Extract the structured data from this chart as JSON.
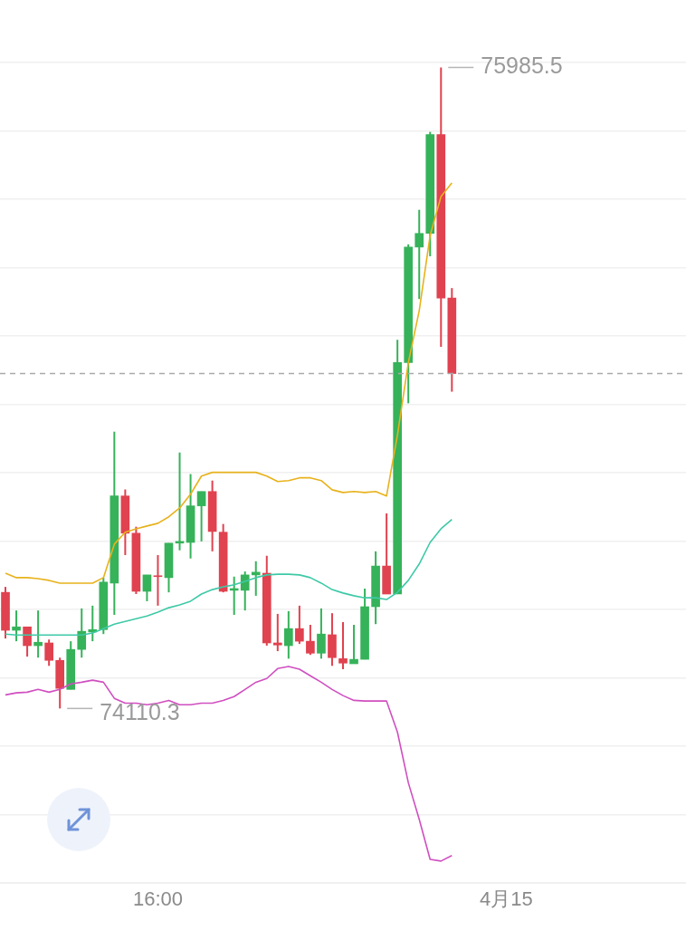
{
  "chart_data": {
    "type": "candlestick",
    "categories": [
      null,
      null,
      null,
      null,
      null,
      null,
      null,
      null,
      null,
      null,
      null,
      null,
      null,
      null,
      "16:00",
      null,
      null,
      null,
      null,
      null,
      null,
      null,
      null,
      null,
      null,
      null,
      null,
      null,
      null,
      null,
      null,
      null,
      null,
      null,
      null,
      null,
      null,
      null,
      null,
      null,
      null,
      null,
      null,
      null,
      null,
      null,
      "4月15",
      null,
      null,
      null,
      null,
      null,
      null,
      null,
      null,
      null,
      null,
      null,
      null,
      null,
      null,
      null,
      null
    ],
    "ohlc": [
      [
        74450,
        74466,
        74315,
        74339
      ],
      [
        74339,
        74397,
        74307,
        74349
      ],
      [
        74349,
        74349,
        74262,
        74294
      ],
      [
        74294,
        74397,
        74259,
        74304
      ],
      [
        74302,
        74312,
        74235,
        74251
      ],
      [
        74251,
        74259,
        74110.3,
        74169
      ],
      [
        74166,
        74307,
        74166,
        74283
      ],
      [
        74283,
        74403,
        74259,
        74336
      ],
      [
        74334,
        74411,
        74307,
        74341
      ],
      [
        74341,
        74493,
        74328,
        74480
      ],
      [
        74477,
        74920,
        74384,
        74732
      ],
      [
        74732,
        74751,
        74559,
        74623
      ],
      [
        74623,
        74642,
        74445,
        74453
      ],
      [
        74453,
        74501,
        74424,
        74501
      ],
      [
        74498,
        74559,
        74411,
        74496
      ],
      [
        74493,
        74594,
        74450,
        74594
      ],
      [
        74594,
        74859,
        74573,
        74599
      ],
      [
        74596,
        74796,
        74549,
        74703
      ],
      [
        74703,
        74745,
        74599,
        74745
      ],
      [
        74745,
        74777,
        74570,
        74628
      ],
      [
        74626,
        74650,
        74450,
        74453
      ],
      [
        74456,
        74496,
        74384,
        74461
      ],
      [
        74456,
        74511,
        74397,
        74501
      ],
      [
        74501,
        74541,
        74440,
        74509
      ],
      [
        74506,
        74557,
        74294,
        74302
      ],
      [
        74302,
        74387,
        74278,
        74296
      ],
      [
        74294,
        74395,
        74256,
        74344
      ],
      [
        74344,
        74411,
        74299,
        74307
      ],
      [
        74307,
        74355,
        74267,
        74272
      ],
      [
        74272,
        74403,
        74256,
        74328
      ],
      [
        74326,
        74389,
        74235,
        74259
      ],
      [
        74256,
        74363,
        74225,
        74243
      ],
      [
        74241,
        74355,
        74241,
        74254
      ],
      [
        74254,
        74461,
        74254,
        74408
      ],
      [
        74408,
        74570,
        74357,
        74527
      ],
      [
        74527,
        74681,
        74445,
        74445
      ],
      [
        74445,
        75189,
        74445,
        75122
      ],
      [
        75122,
        75468,
        75003,
        75460
      ],
      [
        75460,
        75569,
        75308,
        75500
      ],
      [
        75500,
        75797,
        75433,
        75789
      ],
      [
        75789,
        75985.5,
        75168,
        75311
      ],
      [
        75311,
        75340,
        75037,
        75090
      ],
      null,
      null,
      null,
      null,
      null,
      null,
      null,
      null,
      null,
      null,
      null,
      null,
      null,
      null,
      null,
      null,
      null,
      null,
      null,
      null,
      null
    ],
    "colors": [
      "#e0424f",
      "#36b25a",
      "#e0424f",
      "#36b25a",
      "#e0424f",
      "#e0424f",
      "#36b25a",
      "#36b25a",
      "#36b25a",
      "#36b25a",
      "#36b25a",
      "#e0424f",
      "#e0424f",
      "#36b25a",
      "#e0424f",
      "#36b25a",
      "#36b25a",
      "#36b25a",
      "#36b25a",
      "#e0424f",
      "#e0424f",
      "#36b25a",
      "#36b25a",
      "#36b25a",
      "#e0424f",
      "#e0424f",
      "#36b25a",
      "#e0424f",
      "#e0424f",
      "#36b25a",
      "#e0424f",
      "#e0424f",
      "#36b25a",
      "#36b25a",
      "#36b25a",
      "#e0424f",
      "#36b25a",
      "#36b25a",
      "#36b25a",
      "#36b25a",
      "#e0424f",
      "#e0424f",
      null,
      null,
      null,
      null,
      null,
      null,
      null,
      null,
      null,
      null,
      null,
      null,
      null,
      null,
      null,
      null,
      null,
      null,
      null,
      null,
      null
    ],
    "series": [
      {
        "type": "line",
        "color": "#e8b21c",
        "values": [
          74506,
          74493,
          74493,
          74490,
          74485,
          74477,
          74477,
          74477,
          74477,
          74493,
          74591,
          74626,
          74636,
          74644,
          74652,
          74671,
          74697,
          74737,
          74790,
          74801,
          74801,
          74801,
          74801,
          74801,
          74790,
          74774,
          74777,
          74785,
          74785,
          74777,
          74750,
          74742,
          74745,
          74742,
          74745,
          74732,
          74910,
          75122,
          75274,
          75494,
          75608,
          75648,
          null,
          null,
          null,
          null,
          null,
          null,
          null,
          null,
          null,
          null,
          null,
          null,
          null,
          null,
          null,
          null,
          null,
          null,
          null,
          null,
          null
        ]
      },
      {
        "type": "line",
        "color": "#3ec9a7",
        "values": [
          74328,
          74325,
          74325,
          74325,
          74325,
          74325,
          74325,
          74325,
          74331,
          74344,
          74357,
          74365,
          74373,
          74381,
          74392,
          74405,
          74413,
          74424,
          74445,
          74458,
          74466,
          74472,
          74482,
          74493,
          74501,
          74503,
          74503,
          74501,
          74493,
          74477,
          74458,
          74448,
          74440,
          74434,
          74434,
          74429,
          74450,
          74485,
          74533,
          74596,
          74636,
          74663,
          null,
          null,
          null,
          null,
          null,
          null,
          null,
          null,
          null,
          null,
          null,
          null,
          null,
          null,
          null,
          null,
          null,
          null,
          null,
          null,
          null
        ]
      },
      {
        "type": "line",
        "color": "#d04fc0",
        "values": [
          74150,
          74156,
          74158,
          74166,
          74158,
          74166,
          74182,
          74187,
          74193,
          74187,
          74140,
          74126,
          74126,
          74121,
          74126,
          74134,
          74121,
          74121,
          74126,
          74126,
          74134,
          74145,
          74166,
          74187,
          74198,
          74227,
          74233,
          74225,
          74206,
          74187,
          74166,
          74148,
          74134,
          74132,
          74132,
          74132,
          74041,
          73893,
          73786,
          73669,
          73664,
          73680,
          null,
          null,
          null,
          null,
          null,
          null,
          null,
          null,
          null,
          null,
          null,
          null,
          null,
          null,
          null,
          null,
          null,
          null,
          null,
          null,
          null
        ]
      }
    ],
    "ylim": [
      73600,
      76000
    ],
    "yticks": [
      {
        "value": 73600,
        "label": null
      },
      {
        "value": 73800,
        "label": null
      },
      {
        "value": 74000,
        "label": null
      },
      {
        "value": 74200,
        "label": null
      },
      {
        "value": 74400,
        "label": null
      },
      {
        "value": 74600,
        "label": null
      },
      {
        "value": 74800,
        "label": null
      },
      {
        "value": 75000,
        "label": null
      },
      {
        "value": 75200,
        "label": null
      },
      {
        "value": 75400,
        "label": null
      },
      {
        "value": 75600,
        "label": null
      },
      {
        "value": 75800,
        "label": null
      },
      {
        "value": 76000,
        "label": null
      }
    ],
    "grid": "y",
    "tick_labels": "x",
    "ref_lines": [
      {
        "axis": "y",
        "value": 75090,
        "label": null,
        "color": "#aaaaaa",
        "line_style": "dashed"
      }
    ],
    "annotations": [
      "75985.5",
      "74110.3"
    ]
  }
}
